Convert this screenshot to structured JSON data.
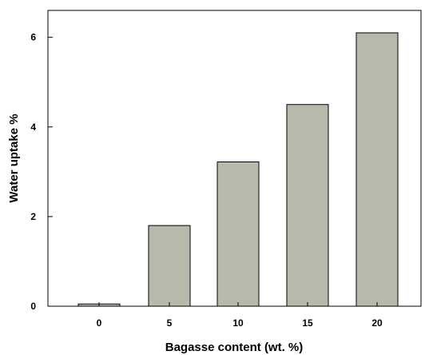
{
  "chart_data": {
    "type": "bar",
    "title": "",
    "xlabel": "Bagasse content (wt. %)",
    "ylabel": "Water uptake %",
    "categories": [
      "0",
      "5",
      "10",
      "15",
      "20"
    ],
    "values": [
      0.05,
      1.8,
      3.22,
      4.5,
      6.1
    ],
    "ylim": [
      0,
      6.6
    ],
    "yticks": [
      "0",
      "2",
      "4",
      "6"
    ],
    "grid": false,
    "bar_color": "#b8b8ab"
  }
}
